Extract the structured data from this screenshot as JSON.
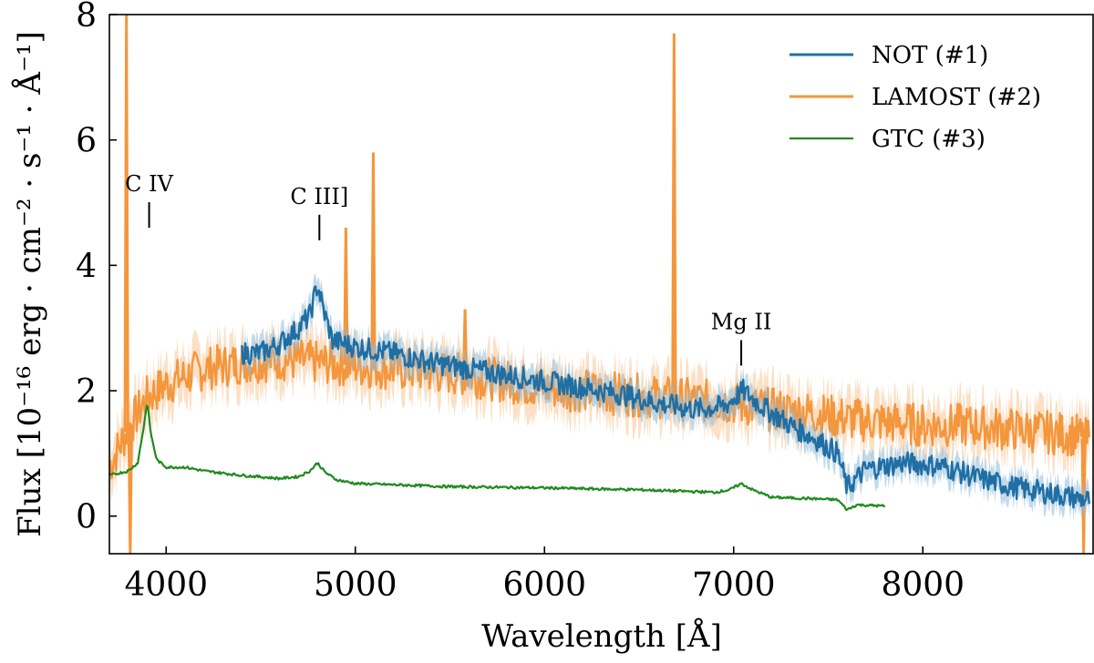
{
  "chart_data": {
    "type": "line",
    "xlabel": "Wavelength [Å]",
    "ylabel": "Flux [10⁻¹⁶ erg · cm⁻² · s⁻¹ · Å⁻¹]",
    "xlim": [
      3700,
      8900
    ],
    "ylim": [
      -0.6,
      8
    ],
    "xticks": [
      4000,
      5000,
      6000,
      7000,
      8000
    ],
    "yticks": [
      0,
      2,
      4,
      6,
      8
    ],
    "legend_position": "top-right",
    "series": [
      {
        "name": "NOT (#1)",
        "color": "#1f6fa5",
        "band_color": "#8fbbd8",
        "noise": 0.18,
        "points": [
          [
            4400,
            2.6
          ],
          [
            4500,
            2.6
          ],
          [
            4600,
            2.75
          ],
          [
            4700,
            3.0
          ],
          [
            4760,
            3.2
          ],
          [
            4800,
            3.7
          ],
          [
            4830,
            3.3
          ],
          [
            4880,
            2.8
          ],
          [
            5000,
            2.7
          ],
          [
            5200,
            2.6
          ],
          [
            5400,
            2.45
          ],
          [
            5600,
            2.35
          ],
          [
            5800,
            2.25
          ],
          [
            6000,
            2.15
          ],
          [
            6200,
            2.05
          ],
          [
            6400,
            1.95
          ],
          [
            6600,
            1.8
          ],
          [
            6800,
            1.7
          ],
          [
            6950,
            1.75
          ],
          [
            7050,
            2.0
          ],
          [
            7150,
            1.75
          ],
          [
            7300,
            1.45
          ],
          [
            7450,
            1.2
          ],
          [
            7550,
            1.0
          ],
          [
            7600,
            0.45
          ],
          [
            7700,
            0.75
          ],
          [
            7900,
            0.85
          ],
          [
            8100,
            0.8
          ],
          [
            8300,
            0.6
          ],
          [
            8500,
            0.45
          ],
          [
            8700,
            0.35
          ],
          [
            8880,
            0.25
          ]
        ]
      },
      {
        "name": "LAMOST (#2)",
        "color": "#f4963c",
        "band_color": "#f8c695",
        "noise": 0.35,
        "points": [
          [
            3700,
            0.8
          ],
          [
            3800,
            1.4
          ],
          [
            3900,
            1.9
          ],
          [
            4000,
            2.1
          ],
          [
            4200,
            2.35
          ],
          [
            4400,
            2.45
          ],
          [
            4600,
            2.5
          ],
          [
            4800,
            2.45
          ],
          [
            5000,
            2.4
          ],
          [
            5200,
            2.35
          ],
          [
            5400,
            2.3
          ],
          [
            5600,
            2.25
          ],
          [
            5800,
            2.15
          ],
          [
            6000,
            2.05
          ],
          [
            6200,
            2.0
          ],
          [
            6400,
            1.95
          ],
          [
            6600,
            1.9
          ],
          [
            6800,
            1.85
          ],
          [
            7000,
            1.8
          ],
          [
            7200,
            1.7
          ],
          [
            7400,
            1.65
          ],
          [
            7600,
            1.55
          ],
          [
            7800,
            1.5
          ],
          [
            8000,
            1.45
          ],
          [
            8200,
            1.45
          ],
          [
            8400,
            1.4
          ],
          [
            8600,
            1.35
          ],
          [
            8800,
            1.3
          ],
          [
            8880,
            1.2
          ]
        ]
      },
      {
        "name": "GTC (#3)",
        "color": "#1f8a1f",
        "band_color": "#1f8a1f",
        "noise": 0.02,
        "points": [
          [
            3700,
            0.65
          ],
          [
            3800,
            0.72
          ],
          [
            3850,
            0.85
          ],
          [
            3880,
            1.4
          ],
          [
            3900,
            1.82
          ],
          [
            3920,
            1.3
          ],
          [
            3950,
            0.9
          ],
          [
            4000,
            0.78
          ],
          [
            4100,
            0.78
          ],
          [
            4200,
            0.72
          ],
          [
            4400,
            0.65
          ],
          [
            4600,
            0.6
          ],
          [
            4700,
            0.63
          ],
          [
            4760,
            0.72
          ],
          [
            4800,
            0.85
          ],
          [
            4840,
            0.7
          ],
          [
            4900,
            0.58
          ],
          [
            5000,
            0.52
          ],
          [
            5200,
            0.5
          ],
          [
            5500,
            0.47
          ],
          [
            6000,
            0.45
          ],
          [
            6500,
            0.42
          ],
          [
            6900,
            0.38
          ],
          [
            6980,
            0.42
          ],
          [
            7040,
            0.52
          ],
          [
            7100,
            0.42
          ],
          [
            7200,
            0.3
          ],
          [
            7400,
            0.28
          ],
          [
            7550,
            0.26
          ],
          [
            7600,
            0.1
          ],
          [
            7650,
            0.18
          ],
          [
            7800,
            0.16
          ]
        ]
      }
    ],
    "spikes": [
      {
        "x": 3790,
        "y": 8.0,
        "series": "LAMOST (#2)"
      },
      {
        "x": 3810,
        "y": -0.6,
        "series": "LAMOST (#2)"
      },
      {
        "x": 4950,
        "y": 4.6,
        "series": "LAMOST (#2)"
      },
      {
        "x": 5095,
        "y": 5.8,
        "series": "LAMOST (#2)"
      },
      {
        "x": 5580,
        "y": 3.3,
        "series": "LAMOST (#2)"
      },
      {
        "x": 6685,
        "y": 7.7,
        "series": "LAMOST (#2)"
      },
      {
        "x": 8850,
        "y": -0.6,
        "series": "LAMOST (#2)"
      }
    ],
    "annotations": [
      {
        "label": "C IV",
        "x": 3910,
        "y": 4.6
      },
      {
        "label": "C III]",
        "x": 4810,
        "y": 4.4
      },
      {
        "label": "Mg II",
        "x": 7040,
        "y": 2.4
      }
    ]
  }
}
